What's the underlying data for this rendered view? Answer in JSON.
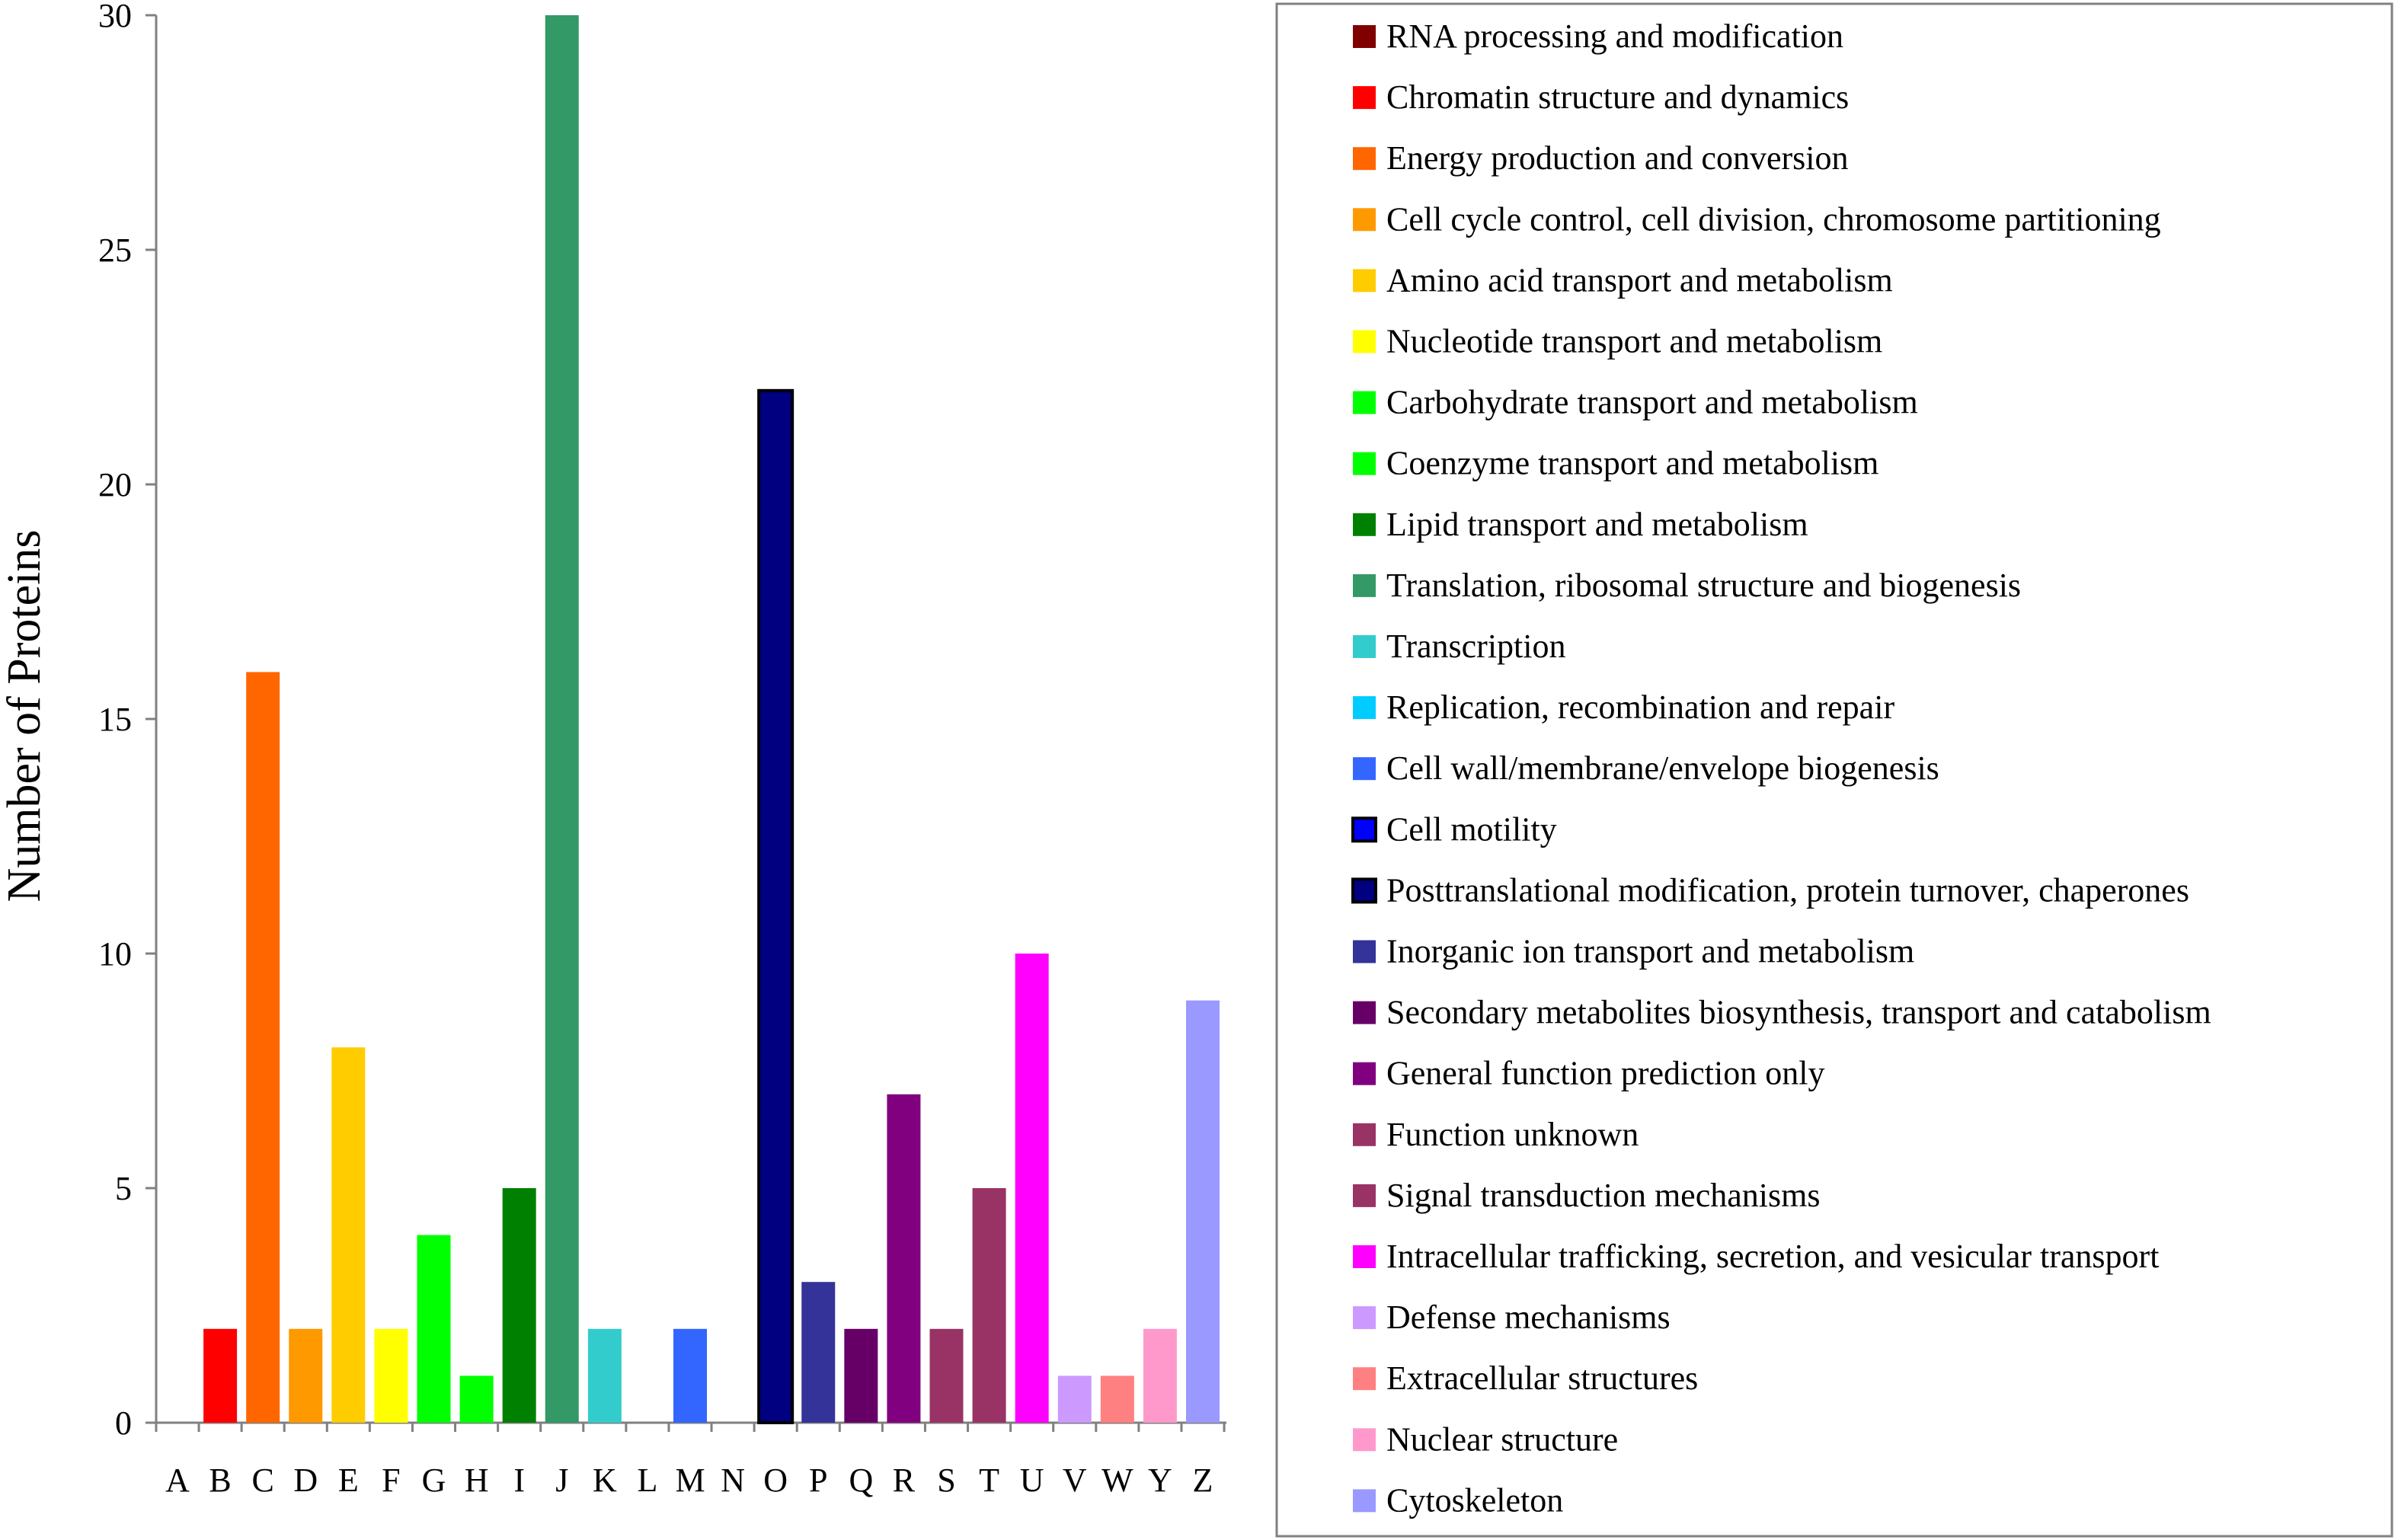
{
  "chart_data": {
    "type": "bar",
    "ylabel": "Number of Proteins",
    "xlabel": "",
    "ylim": [
      0,
      30
    ],
    "yticks": [
      0,
      5,
      10,
      15,
      20,
      25,
      30
    ],
    "legend_position": "right",
    "categories": [
      "A",
      "B",
      "C",
      "D",
      "E",
      "F",
      "G",
      "H",
      "I",
      "J",
      "K",
      "L",
      "M",
      "N",
      "O",
      "P",
      "Q",
      "R",
      "S",
      "T",
      "U",
      "V",
      "W",
      "Y",
      "Z"
    ],
    "values": [
      0,
      2,
      16,
      2,
      8,
      2,
      4,
      1,
      5,
      30,
      2,
      0,
      2,
      0,
      22,
      3,
      2,
      7,
      2,
      5,
      10,
      1,
      1,
      2,
      9
    ],
    "colors": [
      "#800000",
      "#ff0000",
      "#ff6600",
      "#ff9900",
      "#ffcc00",
      "#ffff00",
      "#00ff00",
      "#00ff00",
      "#008000",
      "#339966",
      "#33cccc",
      "#00ccff",
      "#3366ff",
      "#0000ff",
      "#000080",
      "#333399",
      "#660066",
      "#800080",
      "#993366",
      "#993366",
      "#ff00ff",
      "#cc99ff",
      "#ff8080",
      "#ff99cc",
      "#9999ff"
    ],
    "legend": [
      "RNA processing and modification",
      "Chromatin structure and dynamics",
      "Energy production and conversion",
      "Cell cycle control, cell division, chromosome partitioning",
      "Amino acid transport and metabolism",
      "Nucleotide transport and metabolism",
      "Carbohydrate transport and metabolism",
      "Coenzyme transport and metabolism",
      "Lipid transport and metabolism",
      "Translation, ribosomal structure and biogenesis",
      "Transcription",
      "Replication, recombination and repair",
      "Cell wall/membrane/envelope biogenesis",
      "Cell motility",
      "Posttranslational modification, protein turnover, chaperones",
      "Inorganic ion transport and metabolism",
      "Secondary metabolites biosynthesis, transport and catabolism",
      "General function prediction only",
      "Function unknown",
      "Signal transduction mechanisms",
      "Intracellular trafficking, secretion, and vesicular transport",
      "Defense mechanisms",
      "Extracellular structures",
      "Nuclear structure",
      "Cytoskeleton"
    ]
  }
}
